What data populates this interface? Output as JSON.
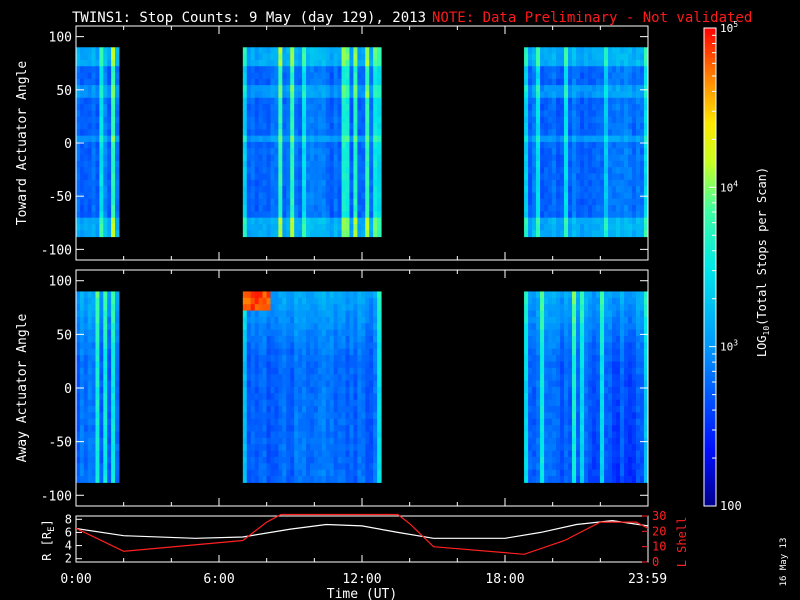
{
  "title": "TWINS1: Stop Counts:  9 May (day 129), 2013",
  "note": "NOTE: Data Preliminary - Not validated",
  "stamp": "16 May 13",
  "colors": {
    "note": "#ff1a1a",
    "axis": "#ffffff",
    "background": "#000000",
    "orbit_R": "#ffffff",
    "orbit_L": "#ff2020"
  },
  "chart_data": [
    {
      "type": "heatmap",
      "panel": "toward",
      "ylabel": "Toward Actuator Angle",
      "ylim": [
        -110,
        110
      ],
      "yticks": [
        -100,
        -50,
        0,
        50,
        100
      ],
      "xlim_hours": [
        0,
        24
      ],
      "data_angle_range": [
        -88,
        90
      ],
      "data_intervals_hours": [
        [
          0.0,
          1.8
        ],
        [
          7.0,
          12.8
        ],
        [
          18.8,
          24.0
        ]
      ]
    },
    {
      "type": "heatmap",
      "panel": "away",
      "ylabel": "Away Actuator Angle",
      "ylim": [
        -110,
        110
      ],
      "yticks": [
        -100,
        -50,
        0,
        50,
        100
      ],
      "xlim_hours": [
        0,
        24
      ],
      "data_angle_range": [
        -88,
        90
      ],
      "data_intervals_hours": [
        [
          0.0,
          1.8
        ],
        [
          7.0,
          12.8
        ],
        [
          18.8,
          24.0
        ]
      ]
    },
    {
      "type": "line",
      "panel": "orbit",
      "xlabel": "Time (UT)",
      "xticks": [
        "0:00",
        "6:00",
        "12:00",
        "18:00",
        "23:59"
      ],
      "xtick_hours": [
        0,
        6,
        12,
        18,
        23.98
      ],
      "ylabel_left": "R [R",
      "ylabel_left_sub": "E",
      "ylabel_left_close": "]",
      "ylabel_right": "L Shell",
      "yticks_left": [
        2,
        4,
        6,
        8
      ],
      "yticks_right": [
        0,
        10,
        20,
        30
      ],
      "ylim_left": [
        1.5,
        8.5
      ],
      "ylim_right": [
        0,
        30
      ],
      "series": [
        {
          "axis": "left",
          "x_hours": [
            0,
            2,
            5,
            7,
            9,
            10.5,
            12,
            13.5,
            15,
            18,
            19.5,
            21,
            22.5,
            24
          ],
          "values": [
            6.6,
            5.5,
            5.1,
            5.3,
            6.5,
            7.2,
            7.0,
            6.0,
            5.1,
            5.1,
            6.0,
            7.2,
            7.8,
            7.0
          ]
        },
        {
          "axis": "right",
          "x_hours": [
            0,
            2,
            7,
            8,
            8.6,
            13.5,
            14,
            15,
            18.8,
            20.5,
            22,
            23.5,
            24
          ],
          "values": [
            22,
            7,
            14,
            26,
            31,
            31,
            25,
            10,
            5,
            14,
            26,
            26,
            22
          ]
        }
      ]
    },
    {
      "type": "heatmap_colorbar",
      "label": "LOG10(Total Stops per Scan)",
      "label_prefix": "LOG",
      "label_sub": "10",
      "label_main": "(Total Stops per Scan)",
      "scale": "log",
      "range": [
        100,
        100000
      ],
      "tick_bottom": "100",
      "ticks_pow": [
        {
          "base": "10",
          "exp": "3"
        },
        {
          "base": "10",
          "exp": "4"
        },
        {
          "base": "10",
          "exp": "5"
        }
      ]
    }
  ]
}
